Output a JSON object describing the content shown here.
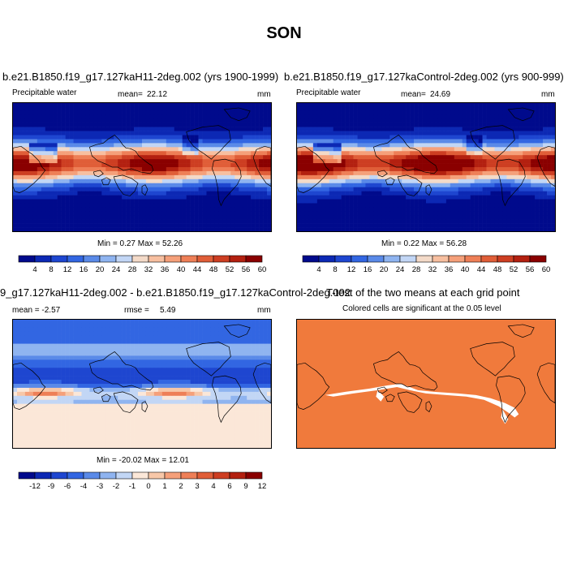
{
  "figure_title": "SON",
  "colors": {
    "precip_scale": [
      "#000a8c",
      "#0c28b4",
      "#1e46d0",
      "#3266e2",
      "#5a8ae8",
      "#8fb4f0",
      "#c2d6f5",
      "#f3dac8",
      "#f7bfa0",
      "#f5a07a",
      "#ee7f57",
      "#e05e38",
      "#cd3e22",
      "#b32010",
      "#8a0000"
    ],
    "diff_scale": [
      "#000a8c",
      "#0c28b4",
      "#1e46d0",
      "#3266e2",
      "#5a8ae8",
      "#8fb4f0",
      "#c2d6f5",
      "#fbe7d8",
      "#f7c7a8",
      "#f5a07a",
      "#ee7f57",
      "#e05e38",
      "#cd3e22",
      "#b32010",
      "#8a0000"
    ],
    "significant": "#f07a3c",
    "coast": "#000000"
  },
  "panels": [
    {
      "title": "b.e21.B1850.f19_g17.127kaH11-2deg.002 (yrs 1900-1999)",
      "left_label": "Precipitable water",
      "stat_label": "mean=",
      "stat_value": "22.12",
      "right_label": "mm",
      "minmax": "Min =   0.27 Max =  52.26"
    },
    {
      "title": "b.e21.B1850.f19_g17.127kaControl-2deg.002 (yrs 900-999)",
      "left_label": "Precipitable water",
      "stat_label": "mean=",
      "stat_value": "24.69",
      "right_label": "mm",
      "minmax": "Min =   0.22 Max =  56.28"
    },
    {
      "title": "9_g17.127kaH11-2deg.002 - b.e21.B1850.f19_g17.127kaControl-2deg.002",
      "left_label": "mean =  -2.57",
      "stat_label": "rmse =",
      "stat_value": "5.49",
      "right_label": "mm",
      "minmax": "Min = -20.02 Max =  12.01"
    },
    {
      "title": "T-test of the two means at each grid point",
      "subtitle": "Colored cells are significant at the 0.05 level"
    }
  ],
  "chart_data": [
    {
      "type": "heatmap",
      "title": "b.e21.B1850.f19_g17.127kaH11-2deg.002 (yrs 1900-1999)",
      "variable": "Precipitable water",
      "units": "mm",
      "mean": 22.12,
      "min": 0.27,
      "max": 52.26,
      "colorbar_ticks": [
        "4",
        "8",
        "12",
        "16",
        "20",
        "24",
        "28",
        "32",
        "36",
        "40",
        "44",
        "48",
        "52",
        "56",
        "60"
      ]
    },
    {
      "type": "heatmap",
      "title": "b.e21.B1850.f19_g17.127kaControl-2deg.002 (yrs 900-999)",
      "variable": "Precipitable water",
      "units": "mm",
      "mean": 24.69,
      "min": 0.22,
      "max": 56.28,
      "colorbar_ticks": [
        "4",
        "8",
        "12",
        "16",
        "20",
        "24",
        "28",
        "32",
        "36",
        "40",
        "44",
        "48",
        "52",
        "56",
        "60"
      ]
    },
    {
      "type": "heatmap",
      "title": "9_g17.127kaH11-2deg.002 - b.e21.B1850.f19_g17.127kaControl-2deg.002",
      "units": "mm",
      "mean": -2.57,
      "rmse": 5.49,
      "min": -20.02,
      "max": 12.01,
      "colorbar_ticks": [
        "-12",
        "-9",
        "-6",
        "-4",
        "-3",
        "-2",
        "-1",
        "0",
        "1",
        "2",
        "3",
        "4",
        "6",
        "9",
        "12"
      ]
    },
    {
      "type": "heatmap",
      "title": "T-test of the two means at each grid point",
      "subtitle": "Colored cells are significant at the 0.05 level"
    }
  ]
}
